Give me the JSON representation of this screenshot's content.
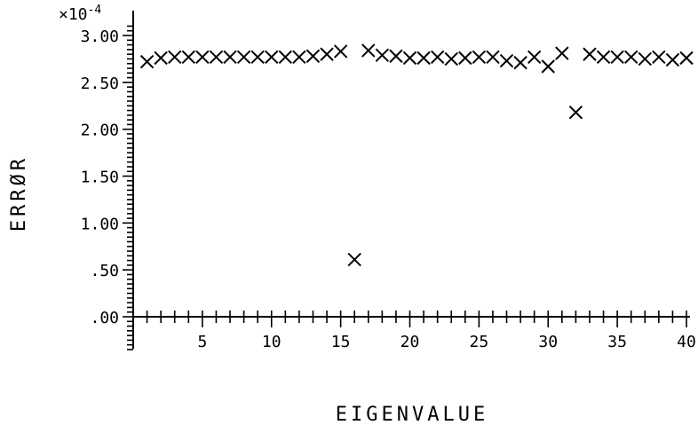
{
  "chart_data": {
    "type": "scatter",
    "title": "",
    "xlabel": "EIGENVALUE",
    "ylabel": "ERRØR",
    "y_scale_label": "×10",
    "y_scale_exponent": "-4",
    "xlim": [
      0,
      40
    ],
    "ylim": [
      0,
      3.0
    ],
    "x_ticks": [
      5,
      10,
      15,
      20,
      25,
      30,
      35,
      40
    ],
    "x_tick_labels": [
      "5",
      "10",
      "15",
      "20",
      "25",
      "30",
      "35",
      "40"
    ],
    "y_ticks": [
      0,
      0.5,
      1.0,
      1.5,
      2.0,
      2.5,
      3.0
    ],
    "y_tick_labels": [
      ".00",
      ".50",
      "1.00",
      "1.50",
      "2.00",
      "2.50",
      "3.00"
    ],
    "grid": false,
    "marker": "x",
    "series": [
      {
        "x": [
          1,
          2,
          3,
          4,
          5,
          6,
          7,
          8,
          9,
          10,
          11,
          12,
          13,
          14,
          15,
          16,
          17,
          18,
          19,
          20,
          21,
          22,
          23,
          24,
          25,
          26,
          27,
          28,
          29,
          30,
          31,
          32,
          33,
          34,
          35,
          36,
          37,
          38,
          39,
          40
        ],
        "y": [
          2.72,
          2.76,
          2.77,
          2.77,
          2.77,
          2.77,
          2.77,
          2.77,
          2.77,
          2.77,
          2.77,
          2.77,
          2.78,
          2.8,
          2.83,
          0.61,
          2.84,
          2.79,
          2.78,
          2.76,
          2.76,
          2.77,
          2.75,
          2.76,
          2.77,
          2.77,
          2.73,
          2.71,
          2.77,
          2.67,
          2.81,
          2.18,
          2.8,
          2.77,
          2.77,
          2.77,
          2.75,
          2.77,
          2.74,
          2.76
        ]
      }
    ]
  }
}
